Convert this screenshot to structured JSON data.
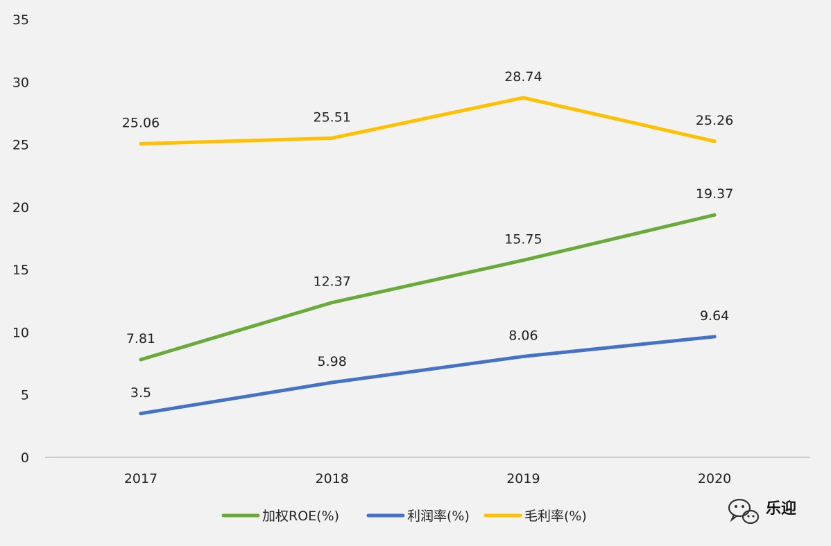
{
  "chart_data": {
    "type": "line",
    "title": "",
    "xlabel": "",
    "ylabel": "",
    "categories": [
      "2017",
      "2018",
      "2019",
      "2020"
    ],
    "ylim": [
      0,
      35
    ],
    "yticks": [
      "0",
      "5",
      "10",
      "15",
      "20",
      "25",
      "30",
      "35"
    ],
    "grid": false,
    "legend_position": "bottom",
    "series": [
      {
        "name": "加权ROE(%)",
        "values": [
          7.81,
          12.37,
          15.75,
          19.37
        ],
        "labels": [
          "7.81",
          "12.37",
          "15.75",
          "19.37"
        ],
        "color": "#6aaa3a"
      },
      {
        "name": "利润率(%)",
        "values": [
          3.5,
          5.98,
          8.06,
          9.64
        ],
        "labels": [
          "3.5",
          "5.98",
          "8.06",
          "9.64"
        ],
        "color": "#4472c4"
      },
      {
        "name": "毛利率(%)",
        "values": [
          25.06,
          25.51,
          28.74,
          25.26
        ],
        "labels": [
          "25.06",
          "25.51",
          "28.74",
          "25.26"
        ],
        "color": "#ffc000"
      }
    ]
  },
  "watermark": {
    "text": "乐迎",
    "icon": "wechat-icon"
  }
}
